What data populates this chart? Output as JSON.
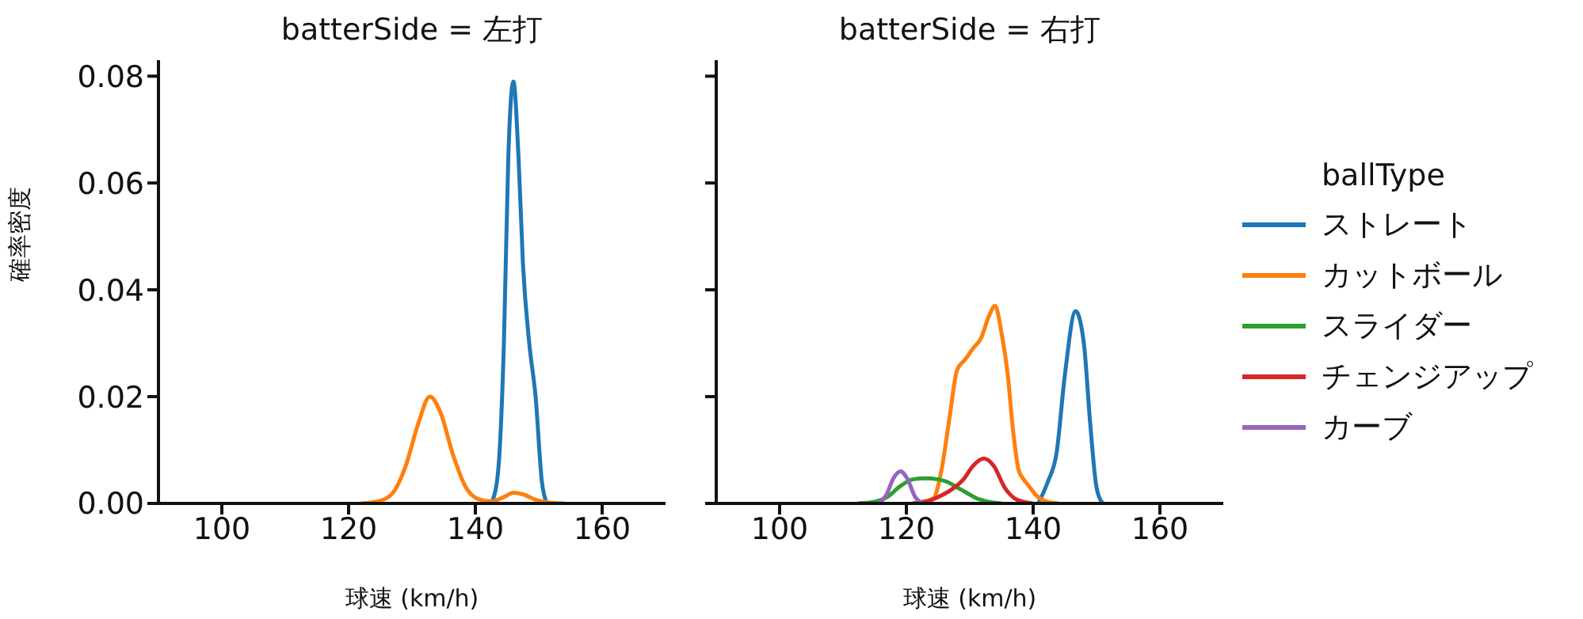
{
  "chart_data": [
    {
      "type": "line",
      "title": "batterSide = 左打",
      "xlabel": "球速 (km/h)",
      "ylabel": "確率密度",
      "xlim": [
        90,
        170
      ],
      "xticks": [
        100,
        120,
        140,
        160
      ],
      "ylim": [
        0,
        0.083
      ],
      "yticks": [
        {
          "value": 0,
          "label": "0.00"
        },
        {
          "value": 0.02,
          "label": "0.02"
        },
        {
          "value": 0.04,
          "label": "0.04"
        },
        {
          "value": 0.06,
          "label": "0.06"
        },
        {
          "value": 0.08,
          "label": "0.08"
        }
      ],
      "series": [
        {
          "color": "#1f77b4",
          "x": [
            142.5,
            143.5,
            144.5,
            145.2,
            146,
            146.8,
            147.5,
            148.5,
            149.5,
            150.5,
            151.3
          ],
          "values": [
            0,
            0.005,
            0.03,
            0.065,
            0.079,
            0.065,
            0.045,
            0.03,
            0.02,
            0.004,
            0
          ]
        },
        {
          "color": "#ff7f0e",
          "x": [
            122,
            125,
            127,
            129,
            131,
            132.8,
            134.5,
            136.5,
            138.5,
            140.5,
            142.5,
            144.5,
            146,
            147.5,
            149.5,
            151.5,
            154
          ],
          "values": [
            0,
            0.0005,
            0.002,
            0.007,
            0.015,
            0.02,
            0.017,
            0.009,
            0.003,
            0.0008,
            0.0004,
            0.0012,
            0.002,
            0.0017,
            0.0007,
            0.0002,
            0
          ]
        }
      ]
    },
    {
      "type": "line",
      "title": "batterSide = 右打",
      "xlabel": "球速 (km/h)",
      "xlim": [
        90,
        170
      ],
      "xticks": [
        100,
        120,
        140,
        160
      ],
      "ylim": [
        0,
        0.083
      ],
      "yticks": [
        {
          "value": 0,
          "label": null
        },
        {
          "value": 0.02,
          "label": null
        },
        {
          "value": 0.04,
          "label": null
        },
        {
          "value": 0.06,
          "label": null
        },
        {
          "value": 0.08,
          "label": null
        }
      ],
      "tick_labels": "x",
      "legend": "right",
      "legend_title": "ballType",
      "series": [
        {
          "name": "ストレート",
          "color": "#1f77b4",
          "x": [
            140.8,
            142.3,
            143.7,
            145,
            146.7,
            148,
            149,
            150,
            151
          ],
          "values": [
            0,
            0.004,
            0.0095,
            0.024,
            0.036,
            0.03,
            0.015,
            0.003,
            0
          ]
        },
        {
          "name": "カットボール",
          "color": "#ff7f0e",
          "x": [
            121,
            122.5,
            124.3,
            125.5,
            126.8,
            128,
            129.3,
            130.5,
            131.8,
            133,
            134,
            135,
            136,
            136.8,
            137.7,
            138.5,
            139.3,
            140.5,
            142,
            144
          ],
          "values": [
            0,
            0.0003,
            0.001,
            0.006,
            0.016,
            0.025,
            0.027,
            0.029,
            0.031,
            0.035,
            0.037,
            0.032,
            0.024,
            0.014,
            0.0063,
            0.0045,
            0.0033,
            0.0015,
            0.0004,
            0
          ]
        },
        {
          "name": "スライダー",
          "color": "#2ca02c",
          "x": [
            112.3,
            115,
            117,
            119,
            121,
            123,
            125,
            126.5,
            128,
            129.5,
            131,
            133,
            135
          ],
          "values": [
            0,
            0.0003,
            0.0012,
            0.0032,
            0.0045,
            0.0047,
            0.0045,
            0.004,
            0.003,
            0.002,
            0.001,
            0.0003,
            0
          ]
        },
        {
          "name": "チェンジアップ",
          "color": "#d62728",
          "x": [
            121,
            123,
            125,
            127,
            129,
            130.5,
            132.2,
            133.8,
            135.5,
            137,
            138.5,
            140
          ],
          "values": [
            0,
            0.0003,
            0.0012,
            0.0025,
            0.0045,
            0.007,
            0.0084,
            0.007,
            0.003,
            0.001,
            0.0003,
            0
          ]
        },
        {
          "name": "カーブ",
          "color": "#9467bd",
          "x": [
            115.6,
            116.8,
            118,
            119.1,
            120.2,
            121.4,
            122.6
          ],
          "values": [
            0,
            0.0015,
            0.0048,
            0.006,
            0.0045,
            0.0012,
            0
          ]
        }
      ]
    }
  ]
}
